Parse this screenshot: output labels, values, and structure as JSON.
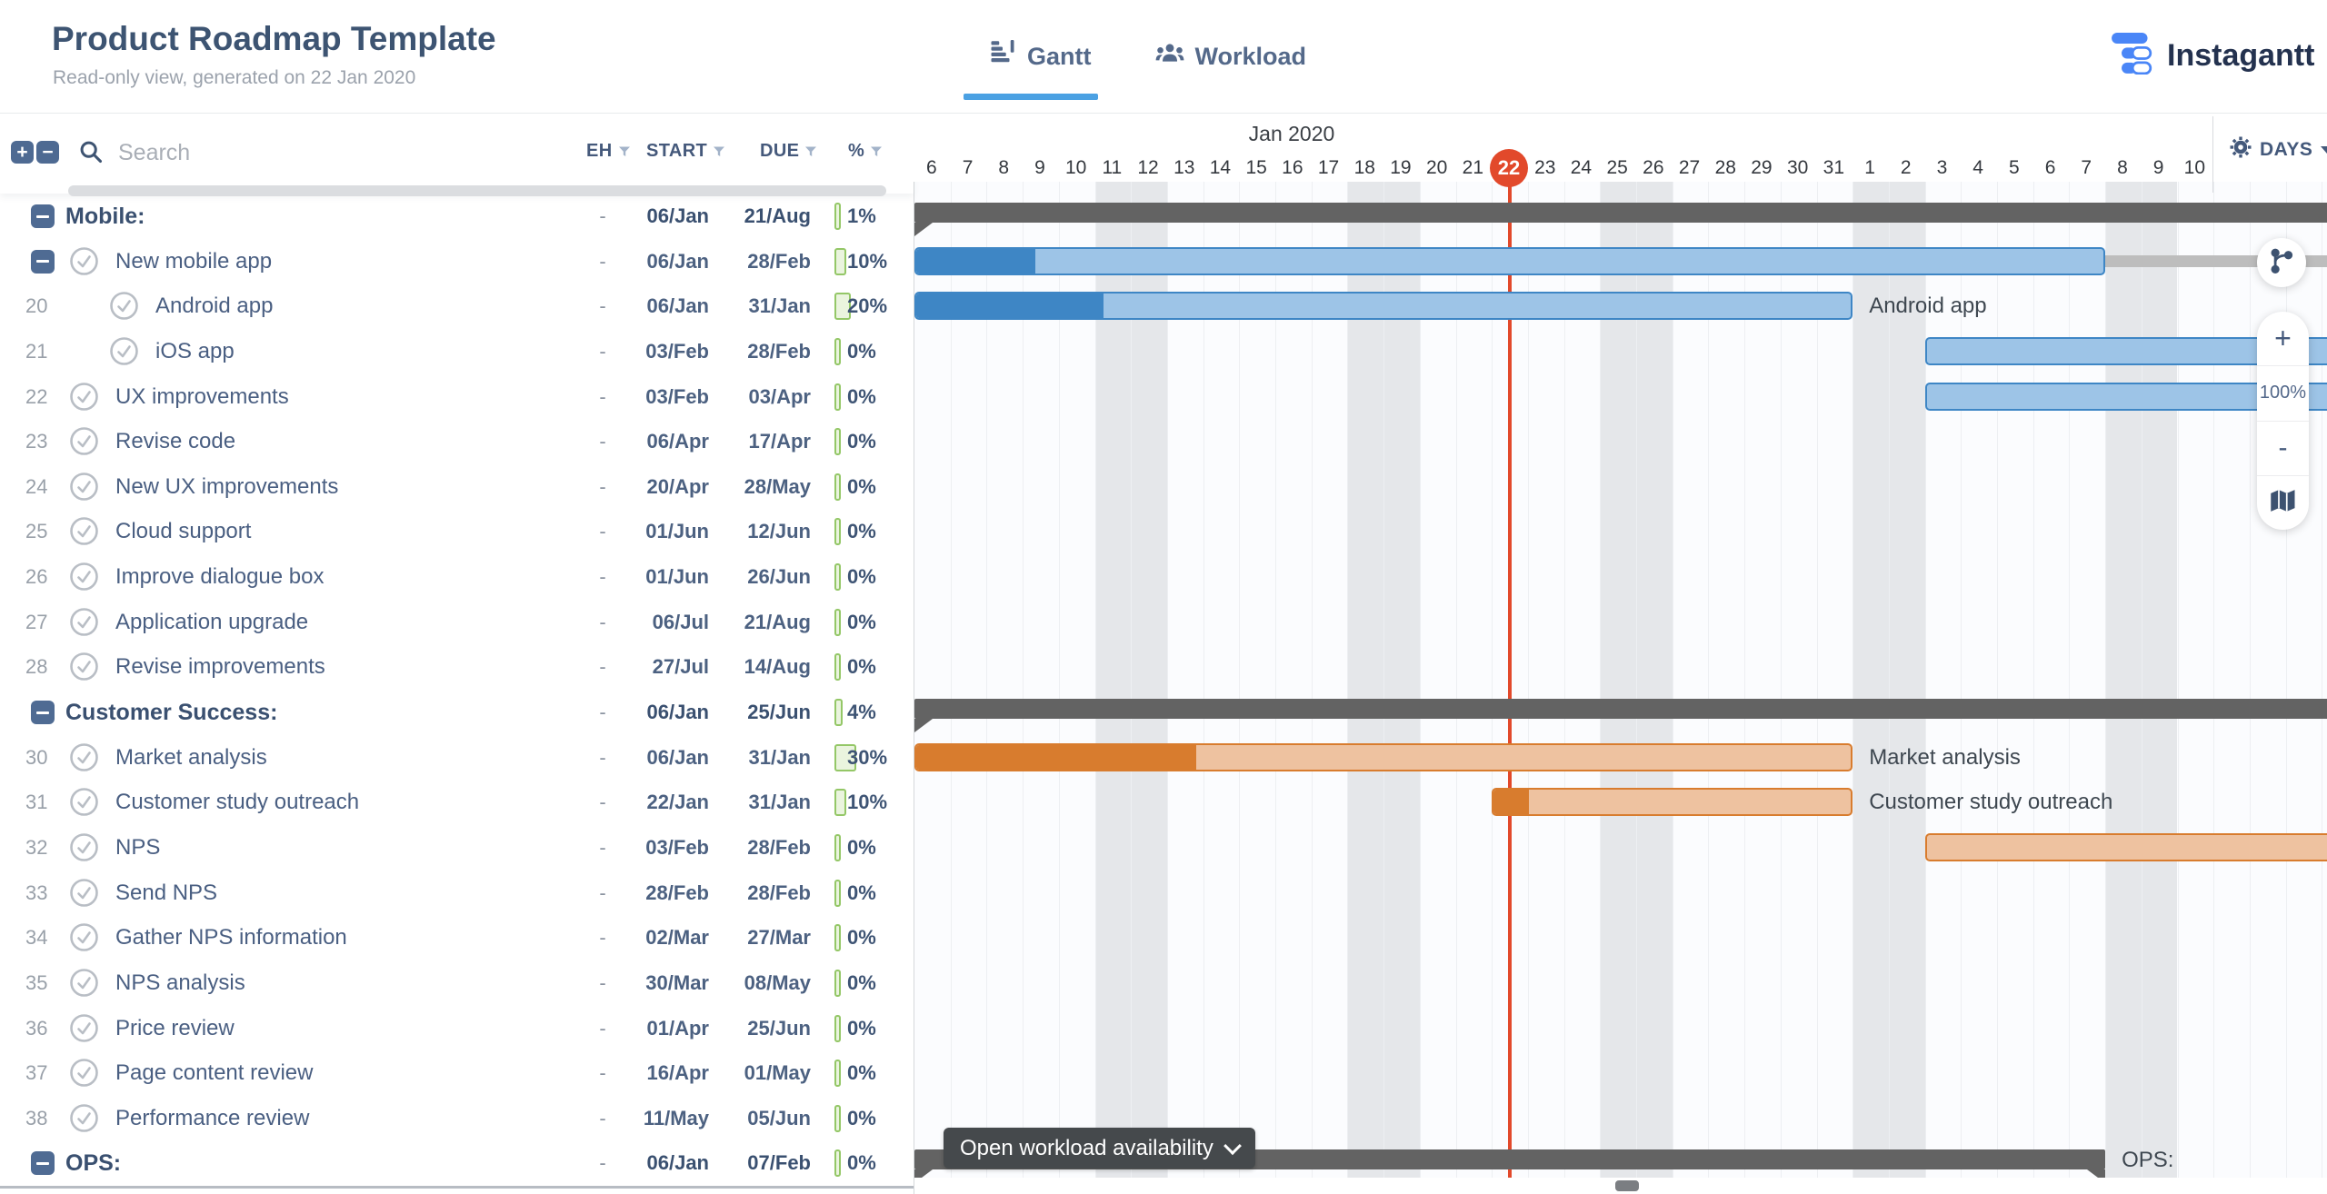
{
  "header": {
    "title": "Product Roadmap Template",
    "subtitle": "Read-only view, generated on 22 Jan 2020",
    "tabs": [
      {
        "label": "Gantt",
        "icon": "gantt-icon",
        "active": true
      },
      {
        "label": "Workload",
        "icon": "workload-icon",
        "active": false
      }
    ],
    "brand": "Instagantt"
  },
  "toolbar": {
    "expand_all": "+",
    "collapse_all": "−",
    "search_placeholder": "Search",
    "columns": [
      "EH",
      "START",
      "DUE",
      "%"
    ]
  },
  "timeline": {
    "month_label": "Jan 2020",
    "days": [
      6,
      7,
      8,
      9,
      10,
      11,
      12,
      13,
      14,
      15,
      16,
      17,
      18,
      19,
      20,
      21,
      22,
      23,
      24,
      25,
      26,
      27,
      28,
      29,
      30,
      31,
      1,
      2,
      3,
      4,
      5,
      6,
      7,
      8,
      9,
      10
    ],
    "today_index": 16,
    "today_label": "22",
    "weekend_indices": [
      5,
      6,
      12,
      13,
      19,
      20,
      26,
      27,
      33,
      34
    ],
    "unit_label": "DAYS"
  },
  "controls": {
    "zoom_in": "+",
    "zoom_level": "100%",
    "zoom_out": "-"
  },
  "chart": {
    "workload_button_label": "Open workload availability"
  },
  "colors": {
    "accent_blue": "#4ba1e3",
    "brand_blue": "#4a86f7",
    "bar_blue_light": "#9dc4e7",
    "bar_blue_dark": "#3e86c5",
    "bar_orange_light": "#eec2a0",
    "bar_orange_dark": "#d87c2e",
    "group_bar": "#636363",
    "today_red": "#e2492b",
    "progress_green": "#94c767"
  },
  "tasks": [
    {
      "num": "",
      "name": "Mobile:",
      "kind": "group",
      "eh": "-",
      "start": "06/Jan",
      "due": "21/Aug",
      "pct": 1,
      "bar": {
        "type": "group",
        "s": 0,
        "e": 39.3,
        "triL": true,
        "triR": false
      }
    },
    {
      "num": "",
      "name": "New mobile app",
      "kind": "parent",
      "eh": "-",
      "start": "06/Jan",
      "due": "28/Feb",
      "pct": 10,
      "bar": {
        "type": "task",
        "color": "blue",
        "s": 0,
        "e": 33,
        "prog": 10,
        "tail": [
          33,
          39.3
        ]
      }
    },
    {
      "num": "20",
      "name": "Android app",
      "kind": "subtask",
      "eh": "-",
      "start": "06/Jan",
      "due": "31/Jan",
      "pct": 20,
      "bar": {
        "type": "task",
        "color": "blue",
        "s": 0,
        "e": 26,
        "prog": 20,
        "label": "Android app"
      }
    },
    {
      "num": "21",
      "name": "iOS app",
      "kind": "subtask",
      "eh": "-",
      "start": "03/Feb",
      "due": "28/Feb",
      "pct": 0,
      "bar": {
        "type": "task",
        "color": "blue",
        "s": 28,
        "e": 39.3,
        "prog": 0
      }
    },
    {
      "num": "22",
      "name": "UX improvements",
      "kind": "task",
      "eh": "-",
      "start": "03/Feb",
      "due": "03/Apr",
      "pct": 0,
      "bar": {
        "type": "task",
        "color": "blue",
        "s": 28,
        "e": 39.3,
        "prog": 0
      }
    },
    {
      "num": "23",
      "name": "Revise code",
      "kind": "task",
      "eh": "-",
      "start": "06/Apr",
      "due": "17/Apr",
      "pct": 0,
      "bar": null
    },
    {
      "num": "24",
      "name": "New UX improvements",
      "kind": "task",
      "eh": "-",
      "start": "20/Apr",
      "due": "28/May",
      "pct": 0,
      "bar": null
    },
    {
      "num": "25",
      "name": "Cloud support",
      "kind": "task",
      "eh": "-",
      "start": "01/Jun",
      "due": "12/Jun",
      "pct": 0,
      "bar": null
    },
    {
      "num": "26",
      "name": "Improve dialogue box",
      "kind": "task",
      "eh": "-",
      "start": "01/Jun",
      "due": "26/Jun",
      "pct": 0,
      "bar": null
    },
    {
      "num": "27",
      "name": "Application upgrade",
      "kind": "task",
      "eh": "-",
      "start": "06/Jul",
      "due": "21/Aug",
      "pct": 0,
      "bar": null
    },
    {
      "num": "28",
      "name": "Revise improvements",
      "kind": "task",
      "eh": "-",
      "start": "27/Jul",
      "due": "14/Aug",
      "pct": 0,
      "bar": null
    },
    {
      "num": "",
      "name": "Customer Success:",
      "kind": "group",
      "eh": "-",
      "start": "06/Jan",
      "due": "25/Jun",
      "pct": 4,
      "bar": {
        "type": "group",
        "s": 0,
        "e": 39.3,
        "triL": true,
        "triR": false
      }
    },
    {
      "num": "30",
      "name": "Market analysis",
      "kind": "task",
      "eh": "-",
      "start": "06/Jan",
      "due": "31/Jan",
      "pct": 30,
      "bar": {
        "type": "task",
        "color": "orange",
        "s": 0,
        "e": 26,
        "prog": 30,
        "label": "Market analysis"
      }
    },
    {
      "num": "31",
      "name": "Customer study outreach",
      "kind": "task",
      "eh": "-",
      "start": "22/Jan",
      "due": "31/Jan",
      "pct": 10,
      "bar": {
        "type": "task",
        "color": "orange",
        "s": 16,
        "e": 26,
        "prog": 10,
        "label": "Customer study outreach"
      }
    },
    {
      "num": "32",
      "name": "NPS",
      "kind": "task",
      "eh": "-",
      "start": "03/Feb",
      "due": "28/Feb",
      "pct": 0,
      "bar": {
        "type": "task",
        "color": "orange",
        "s": 28,
        "e": 39.3,
        "prog": 0
      }
    },
    {
      "num": "33",
      "name": "Send NPS",
      "kind": "task",
      "eh": "-",
      "start": "28/Feb",
      "due": "28/Feb",
      "pct": 0,
      "bar": null
    },
    {
      "num": "34",
      "name": "Gather NPS information",
      "kind": "task",
      "eh": "-",
      "start": "02/Mar",
      "due": "27/Mar",
      "pct": 0,
      "bar": null
    },
    {
      "num": "35",
      "name": "NPS analysis",
      "kind": "task",
      "eh": "-",
      "start": "30/Mar",
      "due": "08/May",
      "pct": 0,
      "bar": null
    },
    {
      "num": "36",
      "name": "Price review",
      "kind": "task",
      "eh": "-",
      "start": "01/Apr",
      "due": "25/Jun",
      "pct": 0,
      "bar": null
    },
    {
      "num": "37",
      "name": "Page content review",
      "kind": "task",
      "eh": "-",
      "start": "16/Apr",
      "due": "01/May",
      "pct": 0,
      "bar": null
    },
    {
      "num": "38",
      "name": "Performance review",
      "kind": "task",
      "eh": "-",
      "start": "11/May",
      "due": "05/Jun",
      "pct": 0,
      "bar": null
    },
    {
      "num": "",
      "name": "OPS:",
      "kind": "group",
      "eh": "-",
      "start": "06/Jan",
      "due": "07/Feb",
      "pct": 0,
      "bar": {
        "type": "group",
        "s": 0,
        "e": 33,
        "triL": true,
        "triR": true,
        "label": "OPS:"
      }
    }
  ]
}
